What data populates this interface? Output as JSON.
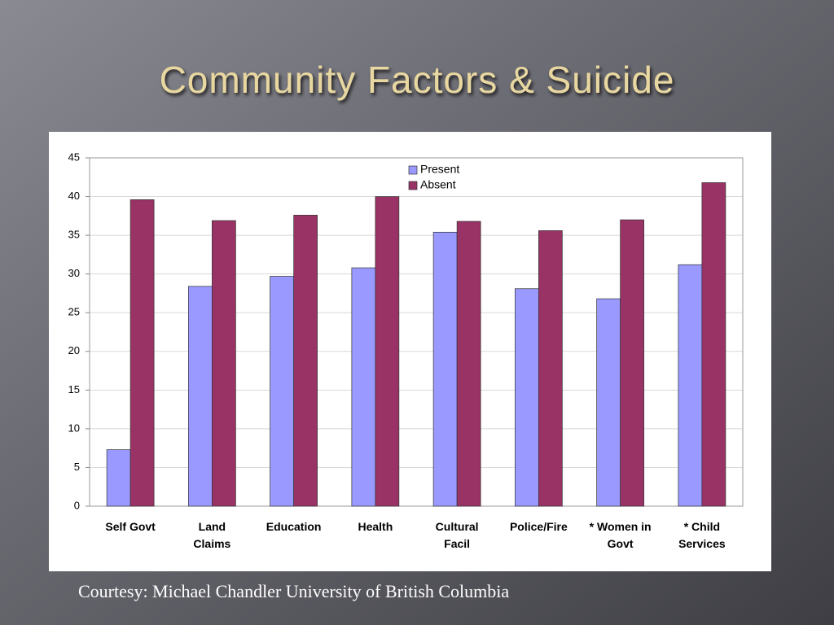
{
  "chart_data": {
    "type": "bar",
    "title": "Community Factors & Suicide",
    "note": "Courtesy: Michael Chandler University of British Columbia",
    "categories": [
      "Self Govt",
      "Land\nClaims",
      "Education",
      "Health",
      "Cultural\nFacil",
      "Police/Fire",
      "* Women in\nGovt",
      "* Child\nServices"
    ],
    "series": [
      {
        "name": "Present",
        "color": "#9999ff",
        "values": [
          7.3,
          28.4,
          29.7,
          30.8,
          35.4,
          28.1,
          26.8,
          31.2
        ]
      },
      {
        "name": "Absent",
        "color": "#993366",
        "values": [
          39.6,
          36.9,
          37.6,
          40.0,
          36.8,
          35.6,
          37.0,
          41.8
        ]
      }
    ],
    "ylim": [
      0,
      45
    ],
    "yticks": [
      0,
      5,
      10,
      15,
      20,
      25,
      30,
      35,
      40,
      45
    ],
    "grid": true,
    "legend": "top"
  }
}
